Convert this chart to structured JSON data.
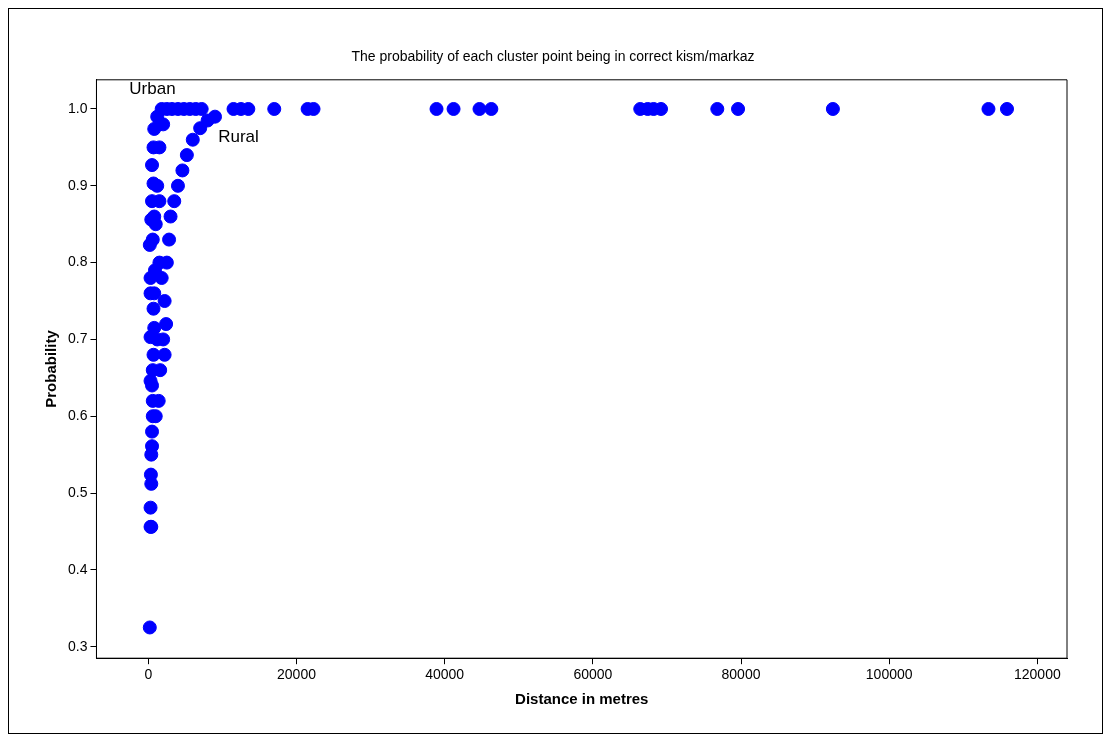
{
  "chart_data": {
    "type": "scatter",
    "title": "The probability of each cluster point being in correct kism/markaz",
    "xlabel": "Distance in metres",
    "ylabel": "Probability",
    "x": [
      200,
      300,
      400,
      300,
      400,
      350,
      400,
      500,
      500,
      600,
      600,
      500,
      300,
      600,
      700,
      300,
      800,
      700,
      300,
      800,
      300,
      900,
      200,
      600,
      400,
      800,
      500,
      700,
      500,
      700,
      800,
      1200,
      1800,
      2500,
      3200,
      4000,
      4800,
      5600,
      6400,
      7200,
      1000,
      1200,
      1500,
      1000,
      1200,
      1500,
      2000,
      1500,
      1800,
      2400,
      2200,
      1600,
      1400,
      2000,
      2200,
      2500,
      2800,
      3000,
      3500,
      4000,
      4600,
      5200,
      6000,
      7000,
      8000,
      9000,
      11500,
      12500,
      13500,
      17000,
      21500,
      22300,
      38900,
      41200,
      44700,
      46300,
      66400,
      67400,
      68200,
      69200,
      76800,
      79600,
      92400,
      113400,
      115900
    ],
    "values": [
      0.325,
      0.456,
      0.456,
      0.481,
      0.512,
      0.524,
      0.55,
      0.561,
      0.58,
      0.6,
      0.62,
      0.64,
      0.646,
      0.66,
      0.68,
      0.703,
      0.715,
      0.74,
      0.76,
      0.76,
      0.78,
      0.79,
      0.823,
      0.83,
      0.856,
      0.86,
      0.88,
      0.903,
      0.927,
      0.95,
      0.974,
      0.99,
      1,
      1,
      1,
      1,
      1,
      1,
      1,
      1,
      0.6,
      0.7,
      0.8,
      0.85,
      0.9,
      0.95,
      0.98,
      0.88,
      0.78,
      0.72,
      0.68,
      0.66,
      0.62,
      0.7,
      0.75,
      0.8,
      0.83,
      0.86,
      0.88,
      0.9,
      0.92,
      0.94,
      0.96,
      0.975,
      0.985,
      0.99,
      1,
      1,
      1,
      1,
      1,
      1,
      1,
      1,
      1,
      1,
      1,
      1,
      1,
      1,
      1,
      1,
      1,
      1,
      1
    ],
    "color": "#0000ff",
    "marker": "circle",
    "xlim": [
      -7000,
      124000
    ],
    "ylim": [
      0.285,
      1.038
    ],
    "xticks": [
      0,
      20000,
      40000,
      60000,
      80000,
      100000,
      120000
    ],
    "yticks": [
      0.3,
      0.4,
      0.5,
      0.6,
      0.7,
      0.8,
      0.9,
      {
        "value": 1,
        "label": "1.0"
      }
    ],
    "annotations": [
      "Urban",
      "Rural"
    ]
  }
}
